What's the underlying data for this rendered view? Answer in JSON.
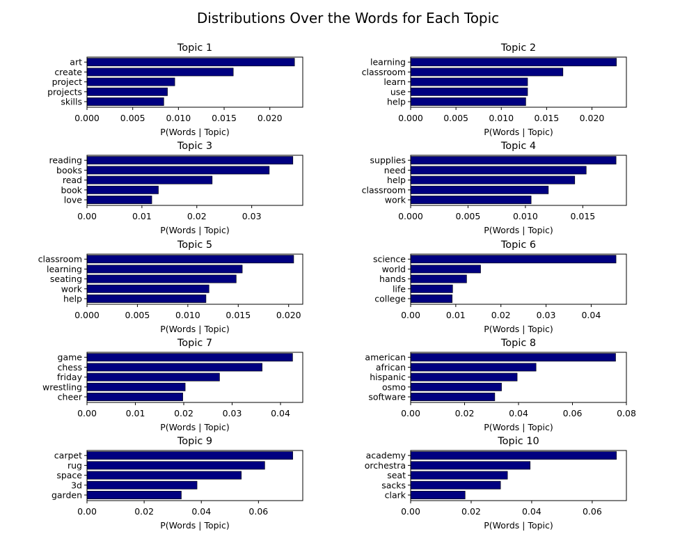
{
  "chart_title": "Distributions Over the Words for Each Topic",
  "bar_color": "#000080",
  "chart_data": [
    {
      "type": "bar",
      "orientation": "horizontal",
      "title": "Topic 1",
      "xlabel": "P(Words | Topic)",
      "categories": [
        "art",
        "create",
        "project",
        "projects",
        "skills"
      ],
      "values": [
        0.0227,
        0.016,
        0.0096,
        0.0088,
        0.0084
      ],
      "xlim": [
        0,
        0.0236
      ],
      "xticks": [
        "0.000",
        "0.005",
        "0.010",
        "0.015",
        "0.020"
      ]
    },
    {
      "type": "bar",
      "orientation": "horizontal",
      "title": "Topic 2",
      "xlabel": "P(Words | Topic)",
      "categories": [
        "learning",
        "classroom",
        "learn",
        "use",
        "help"
      ],
      "values": [
        0.0227,
        0.0168,
        0.0129,
        0.0129,
        0.0127
      ],
      "xlim": [
        0,
        0.0238
      ],
      "xticks": [
        "0.000",
        "0.005",
        "0.010",
        "0.015",
        "0.020"
      ]
    },
    {
      "type": "bar",
      "orientation": "horizontal",
      "title": "Topic 3",
      "xlabel": "P(Words | Topic)",
      "categories": [
        "reading",
        "books",
        "read",
        "book",
        "love"
      ],
      "values": [
        0.0375,
        0.0332,
        0.0228,
        0.013,
        0.0118
      ],
      "xlim": [
        0,
        0.0393
      ],
      "xticks": [
        "0.00",
        "0.01",
        "0.02",
        "0.03"
      ]
    },
    {
      "type": "bar",
      "orientation": "horizontal",
      "title": "Topic 4",
      "xlabel": "P(Words | Topic)",
      "categories": [
        "supplies",
        "need",
        "help",
        "classroom",
        "work"
      ],
      "values": [
        0.0179,
        0.0153,
        0.0143,
        0.012,
        0.0105
      ],
      "xlim": [
        0,
        0.0188
      ],
      "xticks": [
        "0.000",
        "0.005",
        "0.010",
        "0.015"
      ]
    },
    {
      "type": "bar",
      "orientation": "horizontal",
      "title": "Topic 5",
      "xlabel": "P(Words | Topic)",
      "categories": [
        "classroom",
        "learning",
        "seating",
        "work",
        "help"
      ],
      "values": [
        0.0205,
        0.0154,
        0.0148,
        0.0121,
        0.0118
      ],
      "xlim": [
        0,
        0.0214
      ],
      "xticks": [
        "0.000",
        "0.005",
        "0.010",
        "0.015",
        "0.020"
      ]
    },
    {
      "type": "bar",
      "orientation": "horizontal",
      "title": "Topic 6",
      "xlabel": "P(Words | Topic)",
      "categories": [
        "science",
        "world",
        "hands",
        "life",
        "college"
      ],
      "values": [
        0.0455,
        0.0155,
        0.0124,
        0.0093,
        0.0092
      ],
      "xlim": [
        0,
        0.0478
      ],
      "xticks": [
        "0.00",
        "0.01",
        "0.02",
        "0.03",
        "0.04"
      ]
    },
    {
      "type": "bar",
      "orientation": "horizontal",
      "title": "Topic 7",
      "xlabel": "P(Words | Topic)",
      "categories": [
        "game",
        "chess",
        "friday",
        "wrestling",
        "cheer"
      ],
      "values": [
        0.0425,
        0.0362,
        0.0274,
        0.0203,
        0.0198
      ],
      "xlim": [
        0,
        0.0446
      ],
      "xticks": [
        "0.00",
        "0.01",
        "0.02",
        "0.03",
        "0.04"
      ]
    },
    {
      "type": "bar",
      "orientation": "horizontal",
      "title": "Topic 8",
      "xlabel": "P(Words | Topic)",
      "categories": [
        "american",
        "african",
        "hispanic",
        "osmo",
        "software"
      ],
      "values": [
        0.076,
        0.0465,
        0.0395,
        0.0337,
        0.0312
      ],
      "xlim": [
        0,
        0.08
      ],
      "xticks": [
        "0.00",
        "0.02",
        "0.04",
        "0.06",
        "0.08"
      ]
    },
    {
      "type": "bar",
      "orientation": "horizontal",
      "title": "Topic 9",
      "xlabel": "P(Words | Topic)",
      "categories": [
        "carpet",
        "rug",
        "space",
        "3d",
        "garden"
      ],
      "values": [
        0.072,
        0.0622,
        0.054,
        0.0385,
        0.033
      ],
      "xlim": [
        0,
        0.0755
      ],
      "xticks": [
        "0.00",
        "0.02",
        "0.04",
        "0.06"
      ]
    },
    {
      "type": "bar",
      "orientation": "horizontal",
      "title": "Topic 10",
      "xlabel": "P(Words | Topic)",
      "categories": [
        "academy",
        "orchestra",
        "seat",
        "sacks",
        "clark"
      ],
      "values": [
        0.068,
        0.0395,
        0.032,
        0.0297,
        0.018
      ],
      "xlim": [
        0,
        0.0713
      ],
      "xticks": [
        "0.00",
        "0.02",
        "0.04",
        "0.06"
      ]
    }
  ]
}
